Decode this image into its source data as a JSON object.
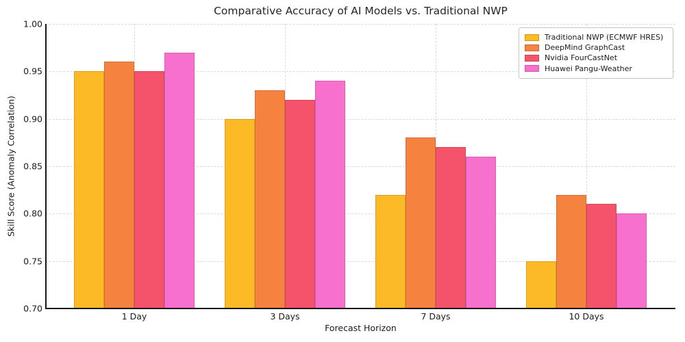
{
  "chart_data": {
    "type": "bar",
    "title": "Comparative Accuracy of AI Models vs. Traditional NWP",
    "xlabel": "Forecast Horizon",
    "ylabel": "Skill Score (Anomaly Correlation)",
    "categories": [
      "1 Day",
      "3 Days",
      "7 Days",
      "10 Days"
    ],
    "series": [
      {
        "name": "Traditional NWP (ECMWF HRES)",
        "color": "#FDBA27",
        "values": [
          0.95,
          0.9,
          0.82,
          0.75
        ]
      },
      {
        "name": "DeepMind GraphCast",
        "color": "#F5823F",
        "values": [
          0.96,
          0.93,
          0.88,
          0.82
        ]
      },
      {
        "name": "Nvidia FourCastNet",
        "color": "#F4536B",
        "values": [
          0.95,
          0.92,
          0.87,
          0.81
        ]
      },
      {
        "name": "Huawei Pangu-Weather",
        "color": "#F770CD",
        "values": [
          0.97,
          0.94,
          0.86,
          0.8
        ]
      }
    ],
    "ylim": [
      0.7,
      1.0
    ],
    "yticks": [
      0.7,
      0.75,
      0.8,
      0.85,
      0.9,
      0.95,
      1.0
    ],
    "ytick_format_decimals": 2,
    "grid": true,
    "grid_style": "dashed",
    "legend_position": "upper right",
    "colors": {
      "background": "#ffffff",
      "gridline": "#d9d9d9",
      "axis": "#161616",
      "text": "#1a1a1a"
    }
  }
}
